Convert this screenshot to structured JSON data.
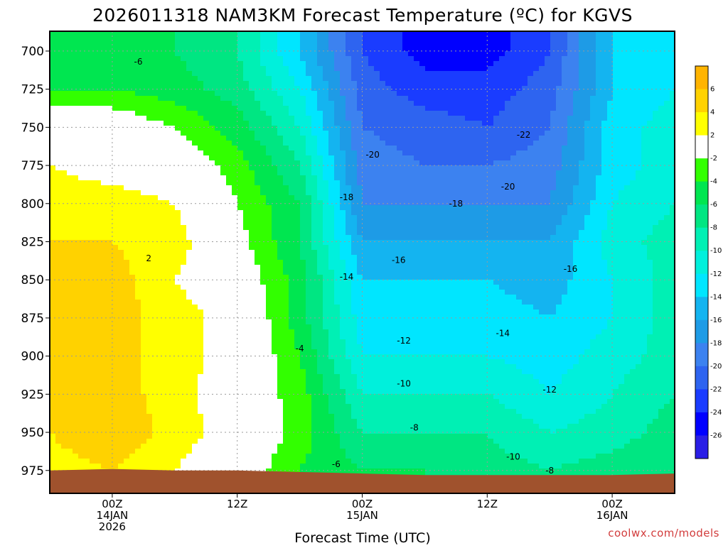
{
  "chart_data": {
    "type": "heatmap",
    "title": "2026011318 NAM3KM Forecast Temperature (ºC) for KGVS",
    "xlabel": "Forecast Time (UTC)",
    "ylabel": "",
    "x_hours_from_00Z_14JAN": [
      -6,
      0,
      6,
      12,
      18,
      24,
      30,
      36,
      42,
      48,
      54
    ],
    "x_range_hours": [
      -6,
      54
    ],
    "x_ticks": [
      {
        "hour": 0,
        "lines": [
          "00Z",
          "14JAN",
          "2026"
        ]
      },
      {
        "hour": 12,
        "lines": [
          "12Z"
        ]
      },
      {
        "hour": 24,
        "lines": [
          "00Z",
          "15JAN"
        ]
      },
      {
        "hour": 36,
        "lines": [
          "12Z"
        ]
      },
      {
        "hour": 48,
        "lines": [
          "00Z",
          "16JAN"
        ]
      }
    ],
    "pressure_levels_hPa": [
      700,
      725,
      750,
      775,
      800,
      825,
      850,
      875,
      900,
      925,
      950,
      975
    ],
    "y_range_hPa": [
      687,
      990
    ],
    "grid": true,
    "temperature_C": [
      [
        -5,
        -5,
        -6,
        -8,
        -14,
        -22,
        -25,
        -25,
        -22,
        -14,
        -12
      ],
      [
        -4,
        -4,
        -5,
        -7,
        -12,
        -21,
        -23,
        -23,
        -21,
        -14,
        -12
      ],
      [
        1,
        0,
        -2,
        -5,
        -10,
        -20,
        -21,
        -22,
        -20,
        -13,
        -11
      ],
      [
        2,
        1,
        0,
        -3,
        -8,
        -19,
        -20,
        -20,
        -19,
        -13,
        -11
      ],
      [
        3,
        3,
        2,
        -2,
        -6,
        -18,
        -18,
        -18,
        -18,
        -12,
        -10
      ],
      [
        4,
        4,
        3,
        -1,
        -6,
        -16,
        -16,
        -16,
        -16,
        -11,
        -9
      ],
      [
        5,
        5,
        2,
        0,
        -5,
        -14,
        -14,
        -14,
        -15,
        -12,
        -9
      ],
      [
        6,
        5,
        3,
        1,
        -5,
        -13,
        -12,
        -13,
        -14,
        -12,
        -9
      ],
      [
        6,
        5,
        3,
        1,
        -4,
        -12,
        -12,
        -12,
        -13,
        -11,
        -9
      ],
      [
        5,
        5,
        3,
        0,
        -3,
        -10,
        -10,
        -10,
        -12,
        -10,
        -8
      ],
      [
        4,
        6,
        3,
        1,
        -3,
        -8,
        -8,
        -8,
        -10,
        -9,
        -7
      ],
      [
        3,
        4,
        2,
        0,
        -4,
        -6,
        -6,
        -7,
        -8,
        -7,
        -6
      ]
    ],
    "terrain_below_hPa": [
      975,
      974,
      975,
      975,
      976,
      977,
      978,
      978,
      978,
      978,
      977
    ],
    "contour_labels": [
      {
        "text": "-6",
        "hour": 2.5,
        "p": 707
      },
      {
        "text": "2",
        "hour": 3.5,
        "p": 836
      },
      {
        "text": "-4",
        "hour": 18,
        "p": 895
      },
      {
        "text": "-22",
        "hour": 39.5,
        "p": 755
      },
      {
        "text": "-20",
        "hour": 25,
        "p": 768
      },
      {
        "text": "-18",
        "hour": 22.5,
        "p": 796
      },
      {
        "text": "-18",
        "hour": 33,
        "p": 800
      },
      {
        "text": "-20",
        "hour": 38,
        "p": 789
      },
      {
        "text": "-16",
        "hour": 27.5,
        "p": 837
      },
      {
        "text": "-16",
        "hour": 44,
        "p": 843
      },
      {
        "text": "-14",
        "hour": 22.5,
        "p": 848
      },
      {
        "text": "-14",
        "hour": 37.5,
        "p": 885
      },
      {
        "text": "-12",
        "hour": 28,
        "p": 890
      },
      {
        "text": "-12",
        "hour": 42,
        "p": 922
      },
      {
        "text": "-10",
        "hour": 28,
        "p": 918
      },
      {
        "text": "-10",
        "hour": 38.5,
        "p": 966
      },
      {
        "text": "-8",
        "hour": 29,
        "p": 947
      },
      {
        "text": "-8",
        "hour": 42,
        "p": 975
      },
      {
        "text": "-6",
        "hour": 21.5,
        "p": 971
      }
    ],
    "colorbar": {
      "boundaries": [
        -28,
        -26,
        -24,
        -22,
        -20,
        -18,
        -16,
        -14,
        -12,
        -10,
        -8,
        -6,
        -4,
        -2,
        2,
        4,
        6,
        8
      ],
      "labels": [
        "6",
        "4",
        "2",
        "-2",
        "-4",
        "-6",
        "-8",
        "-10",
        "-12",
        "-14",
        "-16",
        "-18",
        "-20",
        "-22",
        "-24",
        "-26"
      ],
      "colors": [
        "#2a1ee6",
        "#0000ff",
        "#1a3cff",
        "#2e64f0",
        "#3c82f0",
        "#1e9be6",
        "#14b4f0",
        "#00e6ff",
        "#00f0dc",
        "#00f0b4",
        "#00e682",
        "#00e650",
        "#32ff00",
        "#ffffff",
        "#ffff00",
        "#ffd200",
        "#ffb400"
      ]
    },
    "colors": {
      "terrain": "#a0522d",
      "freezing_line": "#c8005a"
    }
  },
  "credit": "coolwx.com/models"
}
